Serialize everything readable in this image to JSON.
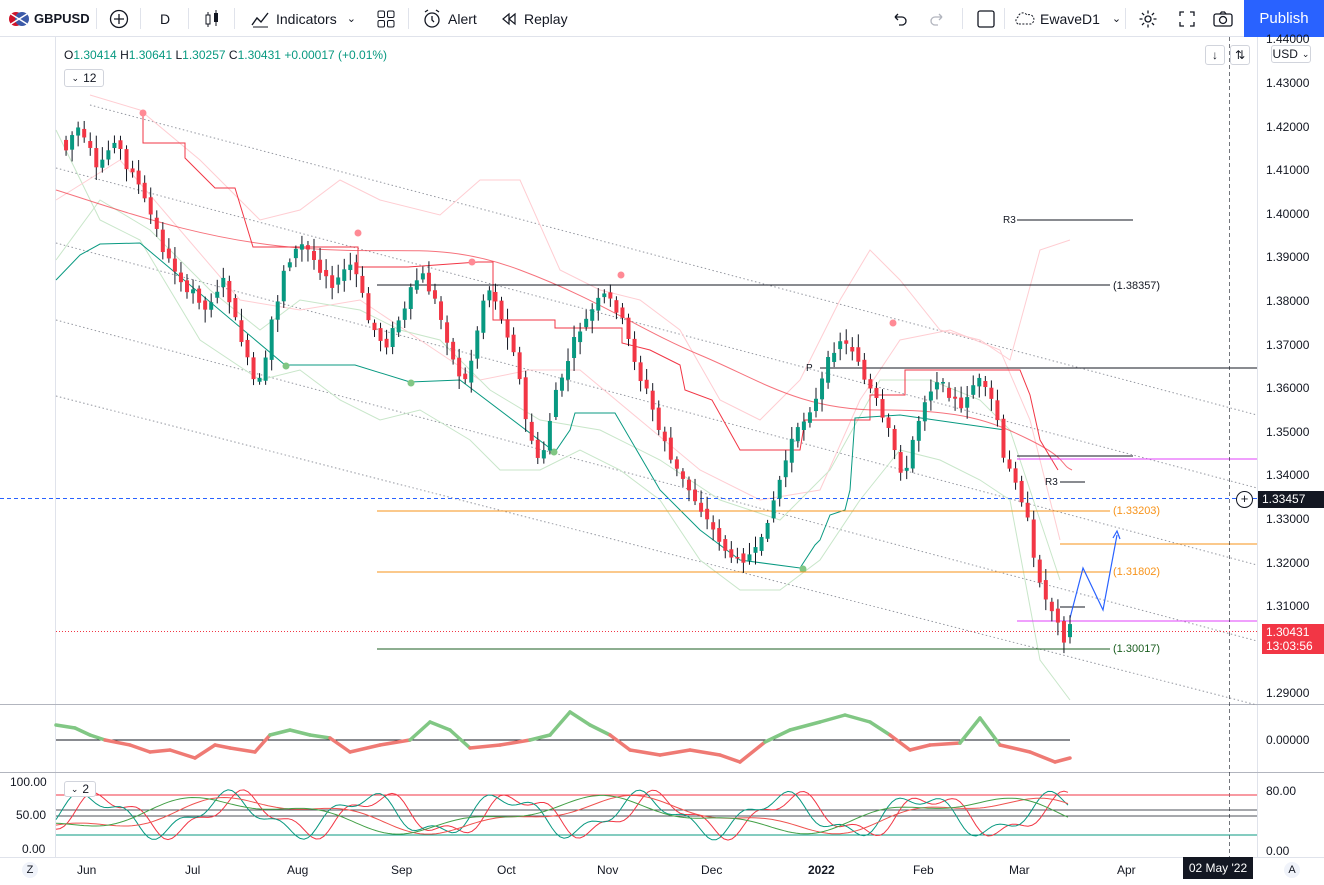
{
  "toolbar": {
    "symbol": "GBPUSD",
    "interval": "D",
    "indicators_label": "Indicators",
    "alert_label": "Alert",
    "replay_label": "Replay",
    "layout_name": "EwaveD1",
    "publish_label": "Publish"
  },
  "legend": {
    "open_key": "O",
    "open": "1.30414",
    "high_key": "H",
    "high": "1.30641",
    "low_key": "L",
    "low": "1.30257",
    "close_key": "C",
    "close": "1.30431",
    "change": "+0.00017 (+0.01%)",
    "indicator_count": "12"
  },
  "price_axis": {
    "currency": "USD",
    "ticks": [
      "1.44000",
      "1.43000",
      "1.42000",
      "1.41000",
      "1.40000",
      "1.39000",
      "1.38000",
      "1.37000",
      "1.36000",
      "1.35000",
      "1.34000",
      "1.33000",
      "1.32000",
      "1.31000",
      "1.29000"
    ],
    "last_price": "1.30431",
    "countdown": "13:03:56",
    "crosshair_price": "1.33457"
  },
  "time_axis": {
    "labels": [
      "Jun",
      "Jul",
      "Aug",
      "Sep",
      "Oct",
      "Nov",
      "Dec",
      "2022",
      "Feb",
      "Mar",
      "Apr"
    ],
    "crosshair_date": "02 May '22"
  },
  "annotations": {
    "level_1": "(1.38357)",
    "level_2": "(1.33203)",
    "level_3": "(1.31802)",
    "level_4": "(1.30017)",
    "r3_upper": "R3",
    "r3_lower": "R3",
    "pivot": "P"
  },
  "oscillator1": {
    "zero_label": "0.00000"
  },
  "oscillator2": {
    "count": "2",
    "left_ticks": [
      "100.00",
      "50.00",
      "0.00"
    ],
    "right_ticks": [
      "80.00",
      "0.00"
    ]
  },
  "colors": {
    "up": "#089981",
    "down": "#f23645",
    "accent": "#2962ff",
    "fib": "#f7931a",
    "magenta": "#e040fb"
  },
  "icons": [
    "logo-icon",
    "add-symbol-icon",
    "candles-icon",
    "indicators-icon",
    "templates-icon",
    "alert-icon",
    "replay-icon",
    "undo-icon",
    "redo-icon",
    "layout-icon",
    "cloud-icon",
    "settings-icon",
    "fullscreen-icon",
    "camera-icon"
  ]
}
